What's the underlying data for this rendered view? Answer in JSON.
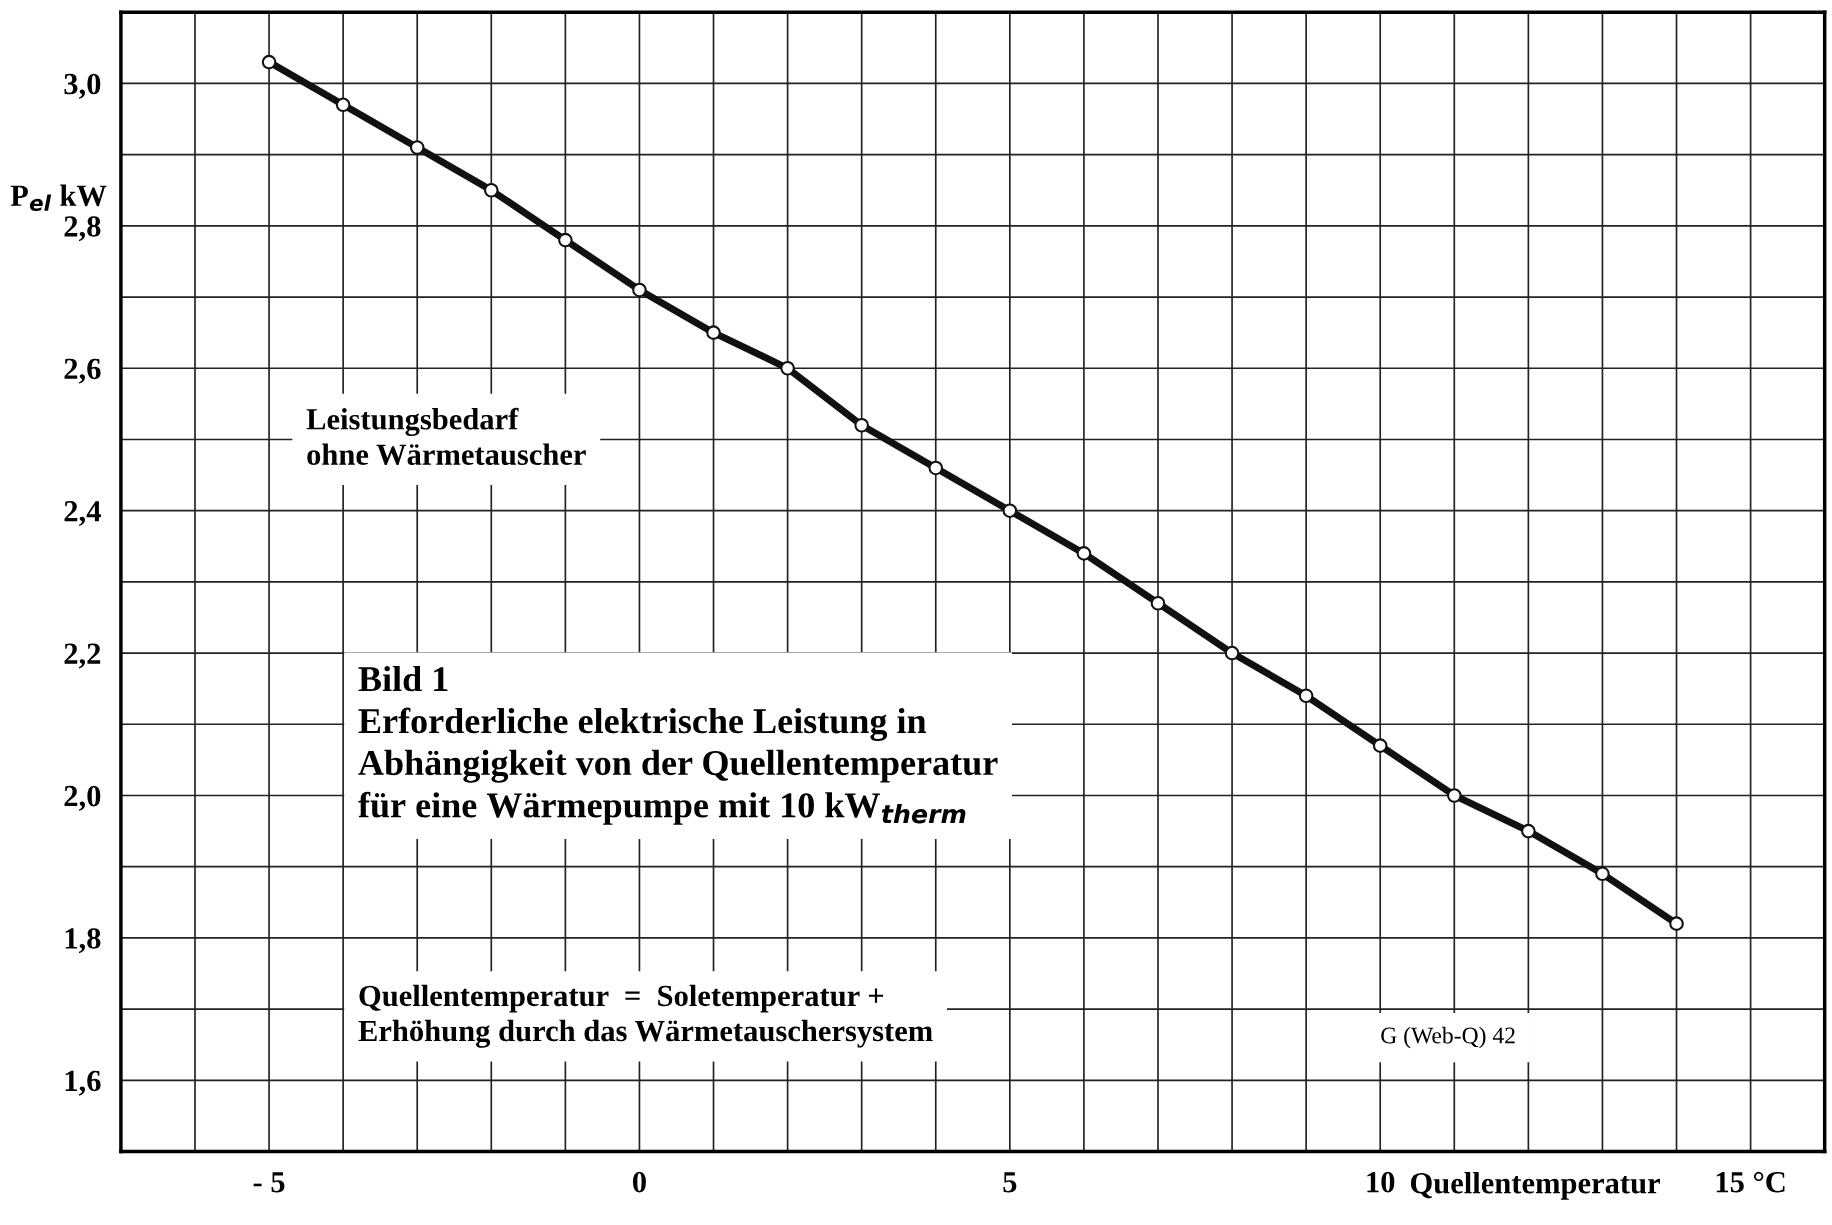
{
  "chart_data": {
    "type": "line",
    "ylabel": "P$_{el}$ kW",
    "xlabel": "Quellentemperatur",
    "x": [
      -5,
      -4,
      -3,
      -2,
      -1,
      0,
      1,
      2,
      3,
      4,
      5,
      6,
      7,
      8,
      9,
      10,
      11,
      12,
      13,
      14
    ],
    "series": [
      {
        "color": "#111111",
        "values": [
          3.03,
          2.97,
          2.91,
          2.85,
          2.78,
          2.71,
          2.65,
          2.6,
          2.52,
          2.46,
          2.4,
          2.34,
          2.27,
          2.2,
          2.14,
          2.07,
          2.0,
          1.95,
          1.89,
          1.82
        ]
      }
    ],
    "marker": "circle",
    "line_style": "solid",
    "grid": true,
    "xlim": [
      -7,
      16
    ],
    "ylim": [
      1.5,
      3.1
    ],
    "xticks": [
      {
        "value": -5,
        "label": "- 5"
      },
      0,
      5,
      10,
      {
        "value": 15,
        "label": "15 °C"
      }
    ],
    "yticks": [
      {
        "value": 1.6,
        "label": "1,6"
      },
      {
        "value": 1.8,
        "label": "1,8"
      },
      {
        "value": 2.0,
        "label": "2,0"
      },
      {
        "value": 2.2,
        "label": "2,2"
      },
      {
        "value": 2.4,
        "label": "2,4"
      },
      {
        "value": 2.6,
        "label": "2,6"
      },
      {
        "value": 2.8,
        "label": "2,8"
      },
      {
        "value": 3.0,
        "label": "3,0"
      }
    ],
    "annotations": [
      "Leistungsbedarf\nohne Wärmetauscher",
      "Bild 1\nErforderliche elektrische Leistung in\nAbhängigkeit von der Quellentemperatur\nfür eine Wärmepumpe mit 10 kW$_{therm}$",
      "Quellentemperatur  =  Soletemperatur +\nErhöhung durch das Wärmetauschersystem",
      "G (Web-Q) 42"
    ]
  }
}
